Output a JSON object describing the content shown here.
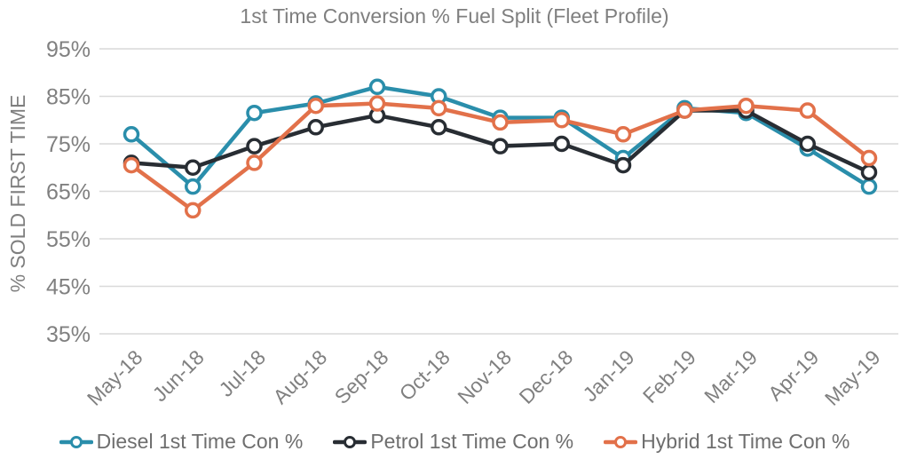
{
  "chart_data": {
    "type": "line",
    "title": "1st Time Conversion % Fuel Split (Fleet Profile)",
    "ylabel": "% SOLD FIRST TIME",
    "xlabel": "",
    "ylim": [
      35,
      95
    ],
    "yticks": [
      95,
      85,
      75,
      65,
      55,
      45,
      35
    ],
    "ytick_format": "percent",
    "grid": "horizontal",
    "legend_position": "bottom",
    "categories": [
      "May-18",
      "Jun-18",
      "Jul-18",
      "Aug-18",
      "Sep-18",
      "Oct-18",
      "Nov-18",
      "Dec-18",
      "Jan-19",
      "Feb-19",
      "Mar-19",
      "Apr-19",
      "May-19"
    ],
    "series": [
      {
        "name": "Diesel 1st Time Con %",
        "color": "#2A8EAB",
        "values": [
          77,
          66,
          81.5,
          83.5,
          87,
          85,
          80.5,
          80.5,
          72,
          82.5,
          81.5,
          74,
          66
        ]
      },
      {
        "name": "Petrol 1st Time Con %",
        "color": "#282D33",
        "values": [
          71,
          70,
          74.5,
          78.5,
          81,
          78.5,
          74.5,
          75,
          70.5,
          82,
          82,
          75,
          69
        ]
      },
      {
        "name": "Hybrid 1st Time Con %",
        "color": "#E2714A",
        "values": [
          70.5,
          61,
          71,
          83,
          83.5,
          82.5,
          79.5,
          80,
          77,
          82,
          83,
          82,
          72
        ]
      }
    ],
    "style": {
      "title_color": "#7f7f7f",
      "axis_label_color": "#7f7f7f",
      "tick_label_color": "#808080",
      "gridline_color": "#d9d9d9",
      "marker_fill": "#ffffff"
    }
  }
}
